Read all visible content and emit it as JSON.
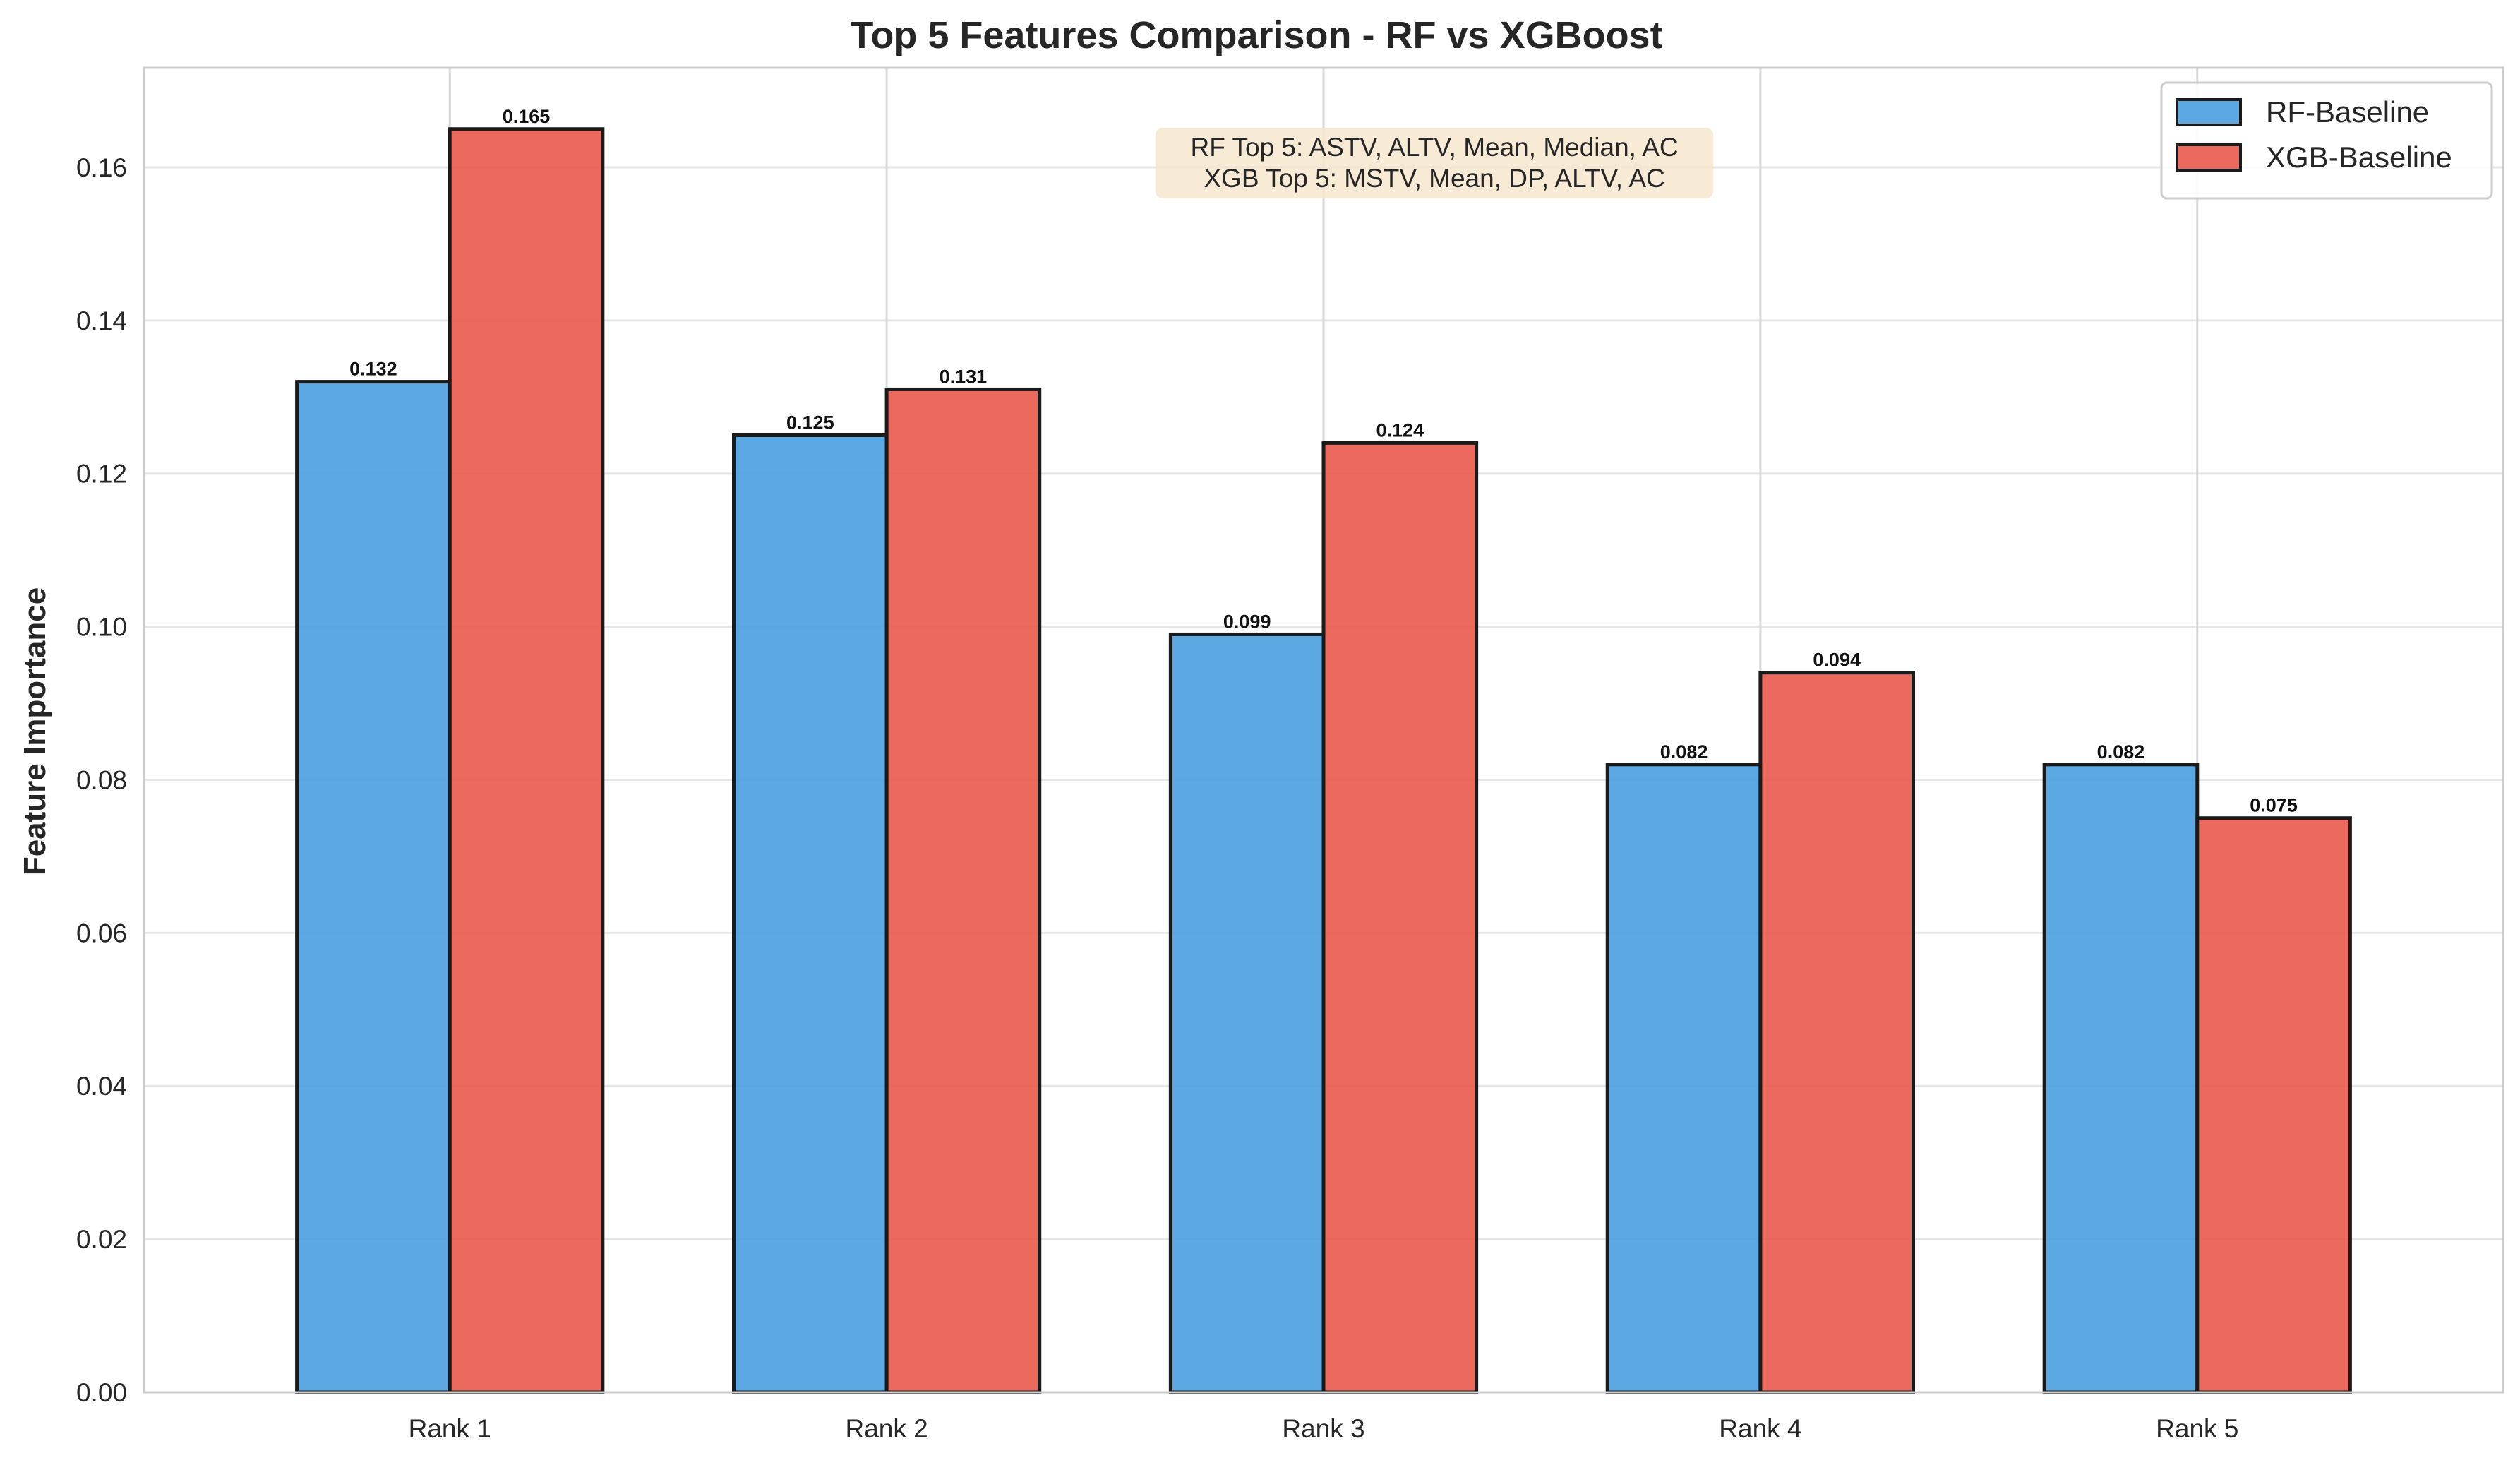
{
  "chart_data": {
    "type": "bar",
    "title": "Top 5 Features Comparison - RF vs XGBoost",
    "xlabel": "",
    "ylabel": "Feature Importance",
    "categories": [
      "Rank 1",
      "Rank 2",
      "Rank 3",
      "Rank 4",
      "Rank 5"
    ],
    "series": [
      {
        "name": "RF-Baseline",
        "color": "#4a9fdf",
        "values": [
          0.132,
          0.125,
          0.099,
          0.082,
          0.082
        ]
      },
      {
        "name": "XGB-Baseline",
        "color": "#e95a4b",
        "values": [
          0.165,
          0.131,
          0.124,
          0.094,
          0.075
        ]
      }
    ],
    "ylim": [
      0,
      0.173
    ],
    "yticks": [
      "0.00",
      "0.02",
      "0.04",
      "0.06",
      "0.08",
      "0.10",
      "0.12",
      "0.14",
      "0.16"
    ],
    "grid": true,
    "legend_position": "top-right",
    "annotation": {
      "lines": [
        "RF Top 5: ASTV, ALTV, Mean, Median, AC",
        "XGB Top 5: MSTV, Mean, DP, ALTV, AC"
      ],
      "background": "#f5e6cc"
    }
  }
}
